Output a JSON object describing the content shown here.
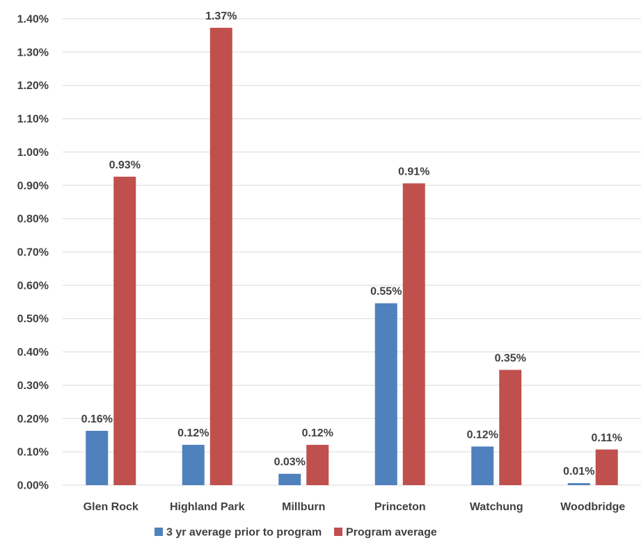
{
  "chart_data": {
    "type": "bar",
    "categories": [
      "Glen Rock",
      "Highland Park",
      "Millburn",
      "Princeton",
      "Watchung",
      "Woodbridge"
    ],
    "series": [
      {
        "name": "3 yr average prior to program",
        "color": "#4F81BD",
        "values": [
          0.163,
          0.121,
          0.034,
          0.546,
          0.116,
          0.006
        ],
        "labels": [
          "0.16%",
          "0.12%",
          "0.03%",
          "0.55%",
          "0.12%",
          "0.01%"
        ]
      },
      {
        "name": "Program average",
        "color": "#C0504D",
        "values": [
          0.926,
          1.373,
          0.121,
          0.906,
          0.346,
          0.107
        ],
        "labels": [
          "0.93%",
          "1.37%",
          "0.12%",
          "0.91%",
          "0.35%",
          "0.11%"
        ]
      }
    ],
    "ylim": [
      0,
      1.4
    ],
    "yticks": [
      "0.00%",
      "0.10%",
      "0.20%",
      "0.30%",
      "0.40%",
      "0.50%",
      "0.60%",
      "0.70%",
      "0.80%",
      "0.90%",
      "1.00%",
      "1.10%",
      "1.20%",
      "1.30%",
      "1.40%"
    ],
    "grid": true,
    "legend_position": "bottom",
    "gridline_color": "#D9D9D9"
  }
}
